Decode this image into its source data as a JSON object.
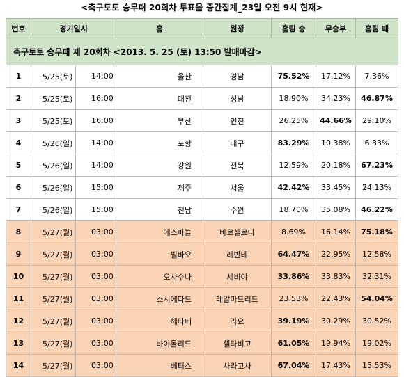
{
  "caption": "<축구토토 승무패 20회차 투표율 중간집계_23일 오전 9시 현재>",
  "banner": "축구토토 승무패 제 20회차 <2013. 5. 25 (토) 13:50 발매마감>",
  "headers": [
    "번호",
    "경기일시",
    "홈",
    "원정",
    "홈팀 승",
    "무승부",
    "홈팀 패"
  ],
  "rows": [
    {
      "no": "1",
      "date": "5/25(토)",
      "time": "14:00",
      "home": "울산",
      "away": "경남",
      "win": "75.52%",
      "draw": "17.12%",
      "lose": "7.36%"
    },
    {
      "no": "2",
      "date": "5/25(토)",
      "time": "16:00",
      "home": "대전",
      "away": "성남",
      "win": "18.90%",
      "draw": "34.23%",
      "lose": "46.87%"
    },
    {
      "no": "3",
      "date": "5/25(토)",
      "time": "16:00",
      "home": "부산",
      "away": "인천",
      "win": "26.25%",
      "draw": "44.66%",
      "lose": "29.10%"
    },
    {
      "no": "4",
      "date": "5/26(일)",
      "time": "14:00",
      "home": "포항",
      "away": "대구",
      "win": "83.29%",
      "draw": "10.38%",
      "lose": "6.33%"
    },
    {
      "no": "5",
      "date": "5/26(일)",
      "time": "14:00",
      "home": "강원",
      "away": "전북",
      "win": "12.59%",
      "draw": "20.18%",
      "lose": "67.23%"
    },
    {
      "no": "6",
      "date": "5/26(일)",
      "time": "15:00",
      "home": "제주",
      "away": "서울",
      "win": "42.42%",
      "draw": "33.45%",
      "lose": "24.13%"
    },
    {
      "no": "7",
      "date": "5/26(일)",
      "time": "15:00",
      "home": "전남",
      "away": "수원",
      "win": "18.70%",
      "draw": "35.08%",
      "lose": "46.22%"
    },
    {
      "no": "8",
      "date": "5/27(월)",
      "time": "03:00",
      "home": "에스파뇰",
      "away": "바르셀로나",
      "win": "8.69%",
      "draw": "16.14%",
      "lose": "75.18%"
    },
    {
      "no": "9",
      "date": "5/27(월)",
      "time": "03:00",
      "home": "빌바오",
      "away": "레반테",
      "win": "64.47%",
      "draw": "22.95%",
      "lose": "12.58%"
    },
    {
      "no": "10",
      "date": "5/27(월)",
      "time": "03:00",
      "home": "오사수나",
      "away": "세비야",
      "win": "33.86%",
      "draw": "33.83%",
      "lose": "32.31%"
    },
    {
      "no": "11",
      "date": "5/27(월)",
      "time": "03:00",
      "home": "소시에다드",
      "away": "레알마드리드",
      "win": "23.53%",
      "draw": "22.43%",
      "lose": "54.04%"
    },
    {
      "no": "12",
      "date": "5/27(월)",
      "time": "03:00",
      "home": "헤타페",
      "away": "라요",
      "win": "39.19%",
      "draw": "30.29%",
      "lose": "30.52%"
    },
    {
      "no": "13",
      "date": "5/27(월)",
      "time": "03:00",
      "home": "바야돌리드",
      "away": "셀타비고",
      "win": "61.05%",
      "draw": "19.94%",
      "lose": "19.02%"
    },
    {
      "no": "14",
      "date": "5/27(월)",
      "time": "03:00",
      "home": "베티스",
      "away": "사라고사",
      "win": "67.04%",
      "draw": "17.43%",
      "lose": "15.53%"
    }
  ],
  "bold_cells": {
    "0": "win",
    "1": "lose",
    "2": "draw",
    "3": "win",
    "4": "lose",
    "5": "win",
    "6": "lose",
    "7": "lose",
    "8": "win",
    "9": "win",
    "10": "lose",
    "11": "win",
    "12": "win",
    "13": "win"
  },
  "highlight_from_row": 8
}
